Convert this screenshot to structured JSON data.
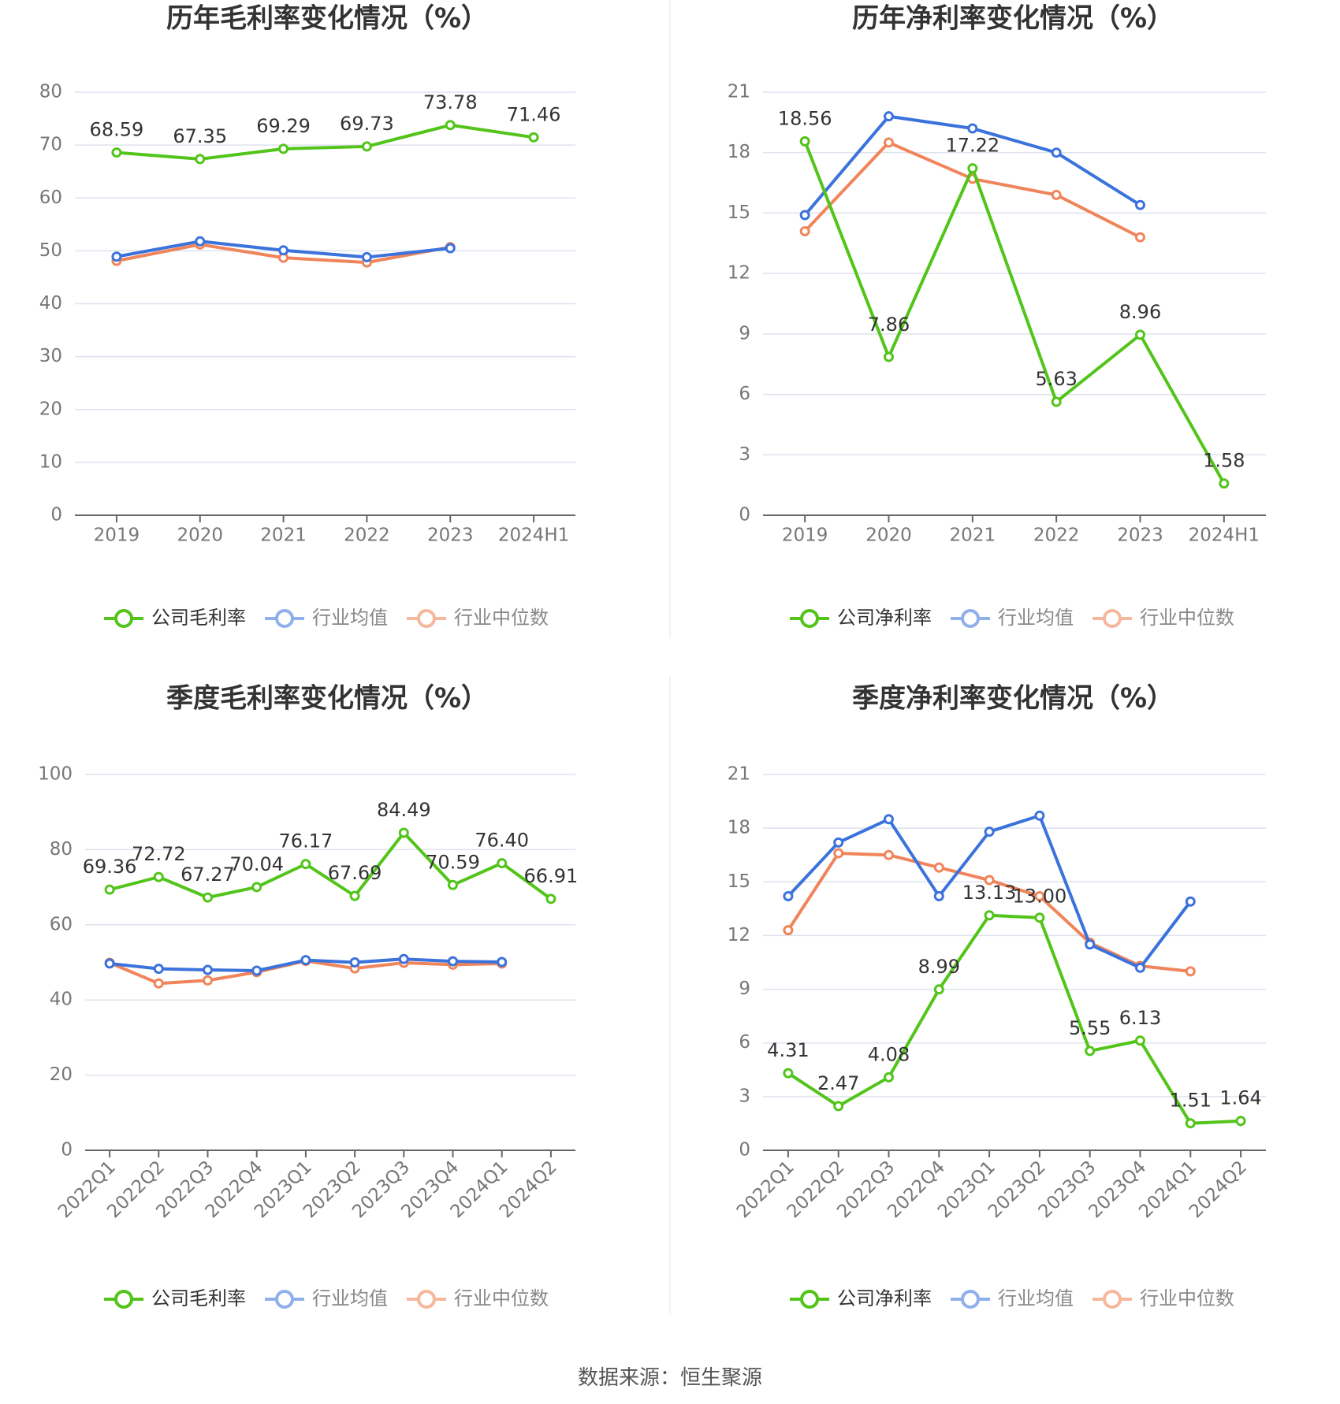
{
  "source": "数据来源：恒生聚源",
  "colors": {
    "company": "#52c41a",
    "avg": "#3b72db",
    "median": "#f0845b",
    "avg_legend": "#8fb0ea",
    "median_legend": "#f6b89d",
    "grid": "#dde3ee",
    "axis": "#666666",
    "tick": "#777777"
  },
  "chart_data": [
    {
      "type": "line",
      "title": "历年毛利率变化情况（%）",
      "x": [
        "2019",
        "2020",
        "2021",
        "2022",
        "2023",
        "2024H1"
      ],
      "ylim": [
        0,
        80
      ],
      "yticks": [
        0,
        10,
        20,
        30,
        40,
        50,
        60,
        70,
        80
      ],
      "grid": true,
      "legend_position": "bottom",
      "series": [
        {
          "name": "公司毛利率",
          "role": "company",
          "labels": true,
          "values": [
            68.59,
            67.35,
            69.29,
            69.73,
            73.78,
            71.46
          ]
        },
        {
          "name": "行业均值",
          "role": "avg",
          "values": [
            48.9,
            51.8,
            50.1,
            48.8,
            50.5,
            null
          ]
        },
        {
          "name": "行业中位数",
          "role": "median",
          "values": [
            48.1,
            51.2,
            48.7,
            47.8,
            50.7,
            null
          ]
        }
      ]
    },
    {
      "type": "line",
      "title": "历年净利率变化情况（%）",
      "x": [
        "2019",
        "2020",
        "2021",
        "2022",
        "2023",
        "2024H1"
      ],
      "ylim": [
        0,
        21
      ],
      "yticks": [
        0,
        3,
        6,
        9,
        12,
        15,
        18,
        21
      ],
      "grid": true,
      "legend_position": "bottom",
      "series": [
        {
          "name": "公司净利率",
          "role": "company",
          "labels": true,
          "values": [
            18.56,
            7.86,
            17.22,
            5.63,
            8.96,
            1.58
          ]
        },
        {
          "name": "行业均值",
          "role": "avg",
          "values": [
            14.9,
            19.8,
            19.2,
            18.0,
            15.4,
            null
          ]
        },
        {
          "name": "行业中位数",
          "role": "median",
          "values": [
            14.1,
            18.5,
            16.7,
            15.9,
            13.8,
            null
          ]
        }
      ]
    },
    {
      "type": "line",
      "title": "季度毛利率变化情况（%）",
      "x": [
        "2022Q1",
        "2022Q2",
        "2022Q3",
        "2022Q4",
        "2023Q1",
        "2023Q2",
        "2023Q3",
        "2023Q4",
        "2024Q1",
        "2024Q2"
      ],
      "ylim": [
        0,
        100
      ],
      "yticks": [
        0,
        20,
        40,
        60,
        80,
        100
      ],
      "grid": true,
      "legend_position": "bottom",
      "series": [
        {
          "name": "公司毛利率",
          "role": "company",
          "labels": true,
          "values": [
            69.36,
            72.72,
            67.27,
            70.04,
            76.17,
            67.69,
            84.49,
            70.59,
            76.4,
            66.91
          ]
        },
        {
          "name": "行业均值",
          "role": "avg",
          "values": [
            49.7,
            48.3,
            48.0,
            47.8,
            50.6,
            50.0,
            50.9,
            50.3,
            50.1,
            null
          ]
        },
        {
          "name": "行业中位数",
          "role": "median",
          "values": [
            49.9,
            44.4,
            45.2,
            47.4,
            50.4,
            48.4,
            49.9,
            49.4,
            49.7,
            null
          ]
        }
      ]
    },
    {
      "type": "line",
      "title": "季度净利率变化情况（%）",
      "x": [
        "2022Q1",
        "2022Q2",
        "2022Q3",
        "2022Q4",
        "2023Q1",
        "2023Q2",
        "2023Q3",
        "2023Q4",
        "2024Q1",
        "2024Q2"
      ],
      "ylim": [
        0,
        21
      ],
      "yticks": [
        0,
        3,
        6,
        9,
        12,
        15,
        18,
        21
      ],
      "grid": true,
      "legend_position": "bottom",
      "series": [
        {
          "name": "公司净利率",
          "role": "company",
          "labels": true,
          "values": [
            4.31,
            2.47,
            4.08,
            8.99,
            13.13,
            13.0,
            5.55,
            6.13,
            1.51,
            1.64
          ]
        },
        {
          "name": "行业均值",
          "role": "avg",
          "values": [
            14.2,
            17.2,
            18.5,
            14.2,
            17.8,
            18.7,
            11.5,
            10.2,
            13.9,
            null
          ]
        },
        {
          "name": "行业中位数",
          "role": "median",
          "values": [
            12.3,
            16.6,
            16.5,
            15.8,
            15.1,
            14.2,
            11.6,
            10.3,
            10.0,
            null
          ]
        }
      ]
    }
  ]
}
